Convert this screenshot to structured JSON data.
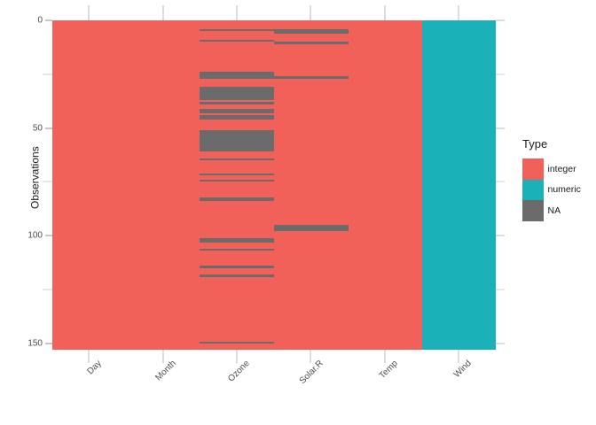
{
  "axes": {
    "y_title": "Observations",
    "y_major_ticks": [
      0,
      50,
      100,
      150
    ],
    "y_minor_ticks": [
      25,
      75,
      125
    ],
    "x_labels": [
      "Day",
      "Month",
      "Ozone",
      "Solar.R",
      "Temp",
      "Wind"
    ]
  },
  "legend": {
    "title": "Type",
    "items": [
      {
        "label": "integer",
        "color": "#F1615A"
      },
      {
        "label": "numeric",
        "color": "#1AB2B8"
      },
      {
        "label": "NA",
        "color": "#6B6B6B"
      }
    ]
  },
  "chart_data": {
    "type": "heatmap",
    "title": "",
    "description": "vis_dat-style data overview of the airquality data frame: 153 observations (rows, y axis top-to-bottom) by 6 variables (columns); cell color encodes variable type, dark gray cells are NA",
    "x_categories": [
      "Day",
      "Month",
      "Ozone",
      "Solar.R",
      "Temp",
      "Wind"
    ],
    "n_observations": 153,
    "ylabel": "Observations",
    "y_ticks": [
      0,
      50,
      100,
      150
    ],
    "y_minor_ticks": [
      25,
      75,
      125
    ],
    "y_direction": "top-to-bottom",
    "legend_title": "Type",
    "legend_position": "right",
    "column_types": {
      "Day": "integer",
      "Month": "integer",
      "Ozone": "integer",
      "Solar.R": "integer",
      "Temp": "integer",
      "Wind": "numeric"
    },
    "na_rows": {
      "Ozone": [
        5,
        10,
        25,
        26,
        27,
        32,
        33,
        34,
        35,
        36,
        37,
        39,
        42,
        43,
        45,
        46,
        52,
        53,
        54,
        55,
        56,
        57,
        58,
        59,
        60,
        61,
        65,
        72,
        75,
        83,
        84,
        102,
        103,
        107,
        115,
        119,
        150
      ],
      "Solar.R": [
        5,
        6,
        11,
        27,
        96,
        97,
        98
      ]
    },
    "colors": {
      "integer": "#F1615A",
      "numeric": "#1AB2B8",
      "NA": "#6B6B6B"
    },
    "gridline_color": "#dcdcdc"
  }
}
